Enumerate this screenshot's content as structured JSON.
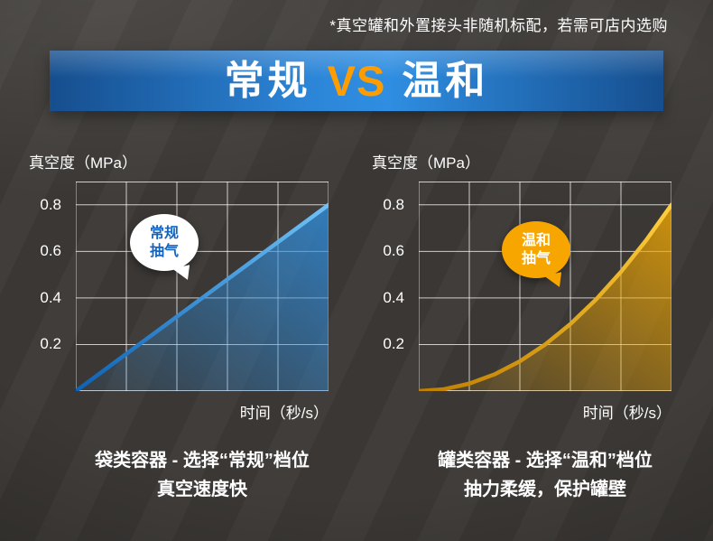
{
  "page": {
    "disclaimer": "*真空罐和外置接头非随机标配，若需可店内选购"
  },
  "banner": {
    "left": "常规",
    "vs": "VS",
    "right": "温和",
    "bg_color": "#2c85d7",
    "vs_color": "#ff9c00",
    "text_color": "#ffffff"
  },
  "chart_data": [
    {
      "type": "line",
      "title": "常规抽气",
      "ylabel": "真空度（MPa）",
      "xlabel": "时间（秒/s）",
      "yticks": [
        0.8,
        0.6,
        0.4,
        0.2
      ],
      "ylim": [
        0,
        0.9
      ],
      "xlim": [
        0,
        10
      ],
      "grid": true,
      "grid_cols": 5,
      "legend": "none",
      "series": [
        {
          "name": "常规抽气",
          "shape": "linear",
          "color": "#2f8fe0",
          "color_light": "#6fc2f7",
          "color_dark": "#0e62b4",
          "x": [
            0,
            1,
            2,
            3,
            4,
            5,
            6,
            7,
            8,
            9,
            10
          ],
          "y": [
            0,
            0.08,
            0.16,
            0.24,
            0.32,
            0.4,
            0.48,
            0.56,
            0.64,
            0.72,
            0.8
          ]
        }
      ],
      "bubble": {
        "line1": "常规",
        "line2": "抽气",
        "bg": "#ffffff",
        "fg": "#1565c0"
      },
      "caption_line1": "袋类容器 - 选择“常规”档位",
      "caption_line2": "真空速度快"
    },
    {
      "type": "line",
      "title": "温和抽气",
      "ylabel": "真空度（MPa）",
      "xlabel": "时间（秒/s）",
      "yticks": [
        0.8,
        0.6,
        0.4,
        0.2
      ],
      "ylim": [
        0,
        0.9
      ],
      "xlim": [
        0,
        10
      ],
      "grid": true,
      "grid_cols": 5,
      "legend": "none",
      "series": [
        {
          "name": "温和抽气",
          "shape": "accelerating",
          "color": "#f2a800",
          "color_light": "#ffcf3e",
          "color_dark": "#c07f00",
          "x": [
            0,
            1,
            2,
            3,
            4,
            5,
            6,
            7,
            8,
            9,
            10
          ],
          "y": [
            0,
            0.008,
            0.032,
            0.072,
            0.128,
            0.2,
            0.288,
            0.392,
            0.512,
            0.648,
            0.8
          ]
        }
      ],
      "bubble": {
        "line1": "温和",
        "line2": "抽气",
        "bg": "#f7a600",
        "fg": "#ffffff"
      },
      "caption_line1": "罐类容器 - 选择“温和”档位",
      "caption_line2": "抽力柔缓，保护罐壁"
    }
  ]
}
